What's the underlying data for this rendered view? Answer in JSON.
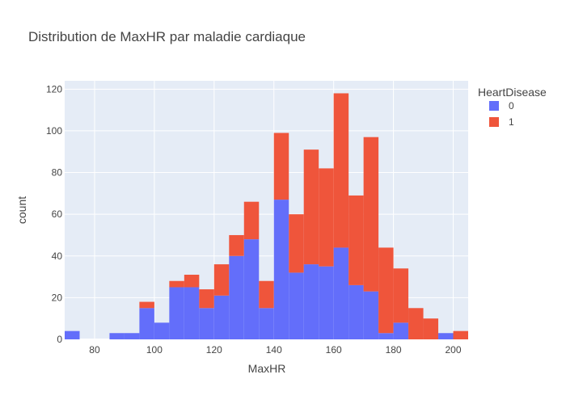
{
  "chart_data": {
    "type": "bar",
    "stacked": true,
    "title": "Distribution de MaxHR par maladie cardiaque",
    "xlabel": "MaxHR",
    "ylabel": "count",
    "xlim": [
      70,
      205
    ],
    "ylim": [
      0,
      124
    ],
    "x_ticks": [
      80,
      100,
      120,
      140,
      160,
      180,
      200
    ],
    "y_ticks": [
      0,
      20,
      40,
      60,
      80,
      100,
      120
    ],
    "bin_width": 5,
    "bin_starts": [
      70,
      75,
      80,
      85,
      90,
      95,
      100,
      105,
      110,
      115,
      120,
      125,
      130,
      135,
      140,
      145,
      150,
      155,
      160,
      165,
      170,
      175,
      180,
      185,
      190,
      195,
      200
    ],
    "legend": {
      "title": "HeartDisease",
      "position": "top-right"
    },
    "grid": true,
    "series": [
      {
        "name": "0",
        "color": "#636efa",
        "values": [
          4,
          0,
          0,
          3,
          3,
          15,
          8,
          25,
          25,
          15,
          21,
          40,
          48,
          15,
          67,
          32,
          36,
          35,
          44,
          26,
          23,
          3,
          8,
          0,
          0,
          3,
          0
        ]
      },
      {
        "name": "1",
        "color": "#ef553b",
        "values": [
          0,
          0,
          0,
          0,
          0,
          3,
          0,
          3,
          6,
          9,
          15,
          10,
          18,
          13,
          32,
          28,
          55,
          47,
          74,
          43,
          74,
          41,
          26,
          15,
          10,
          0,
          4
        ]
      }
    ]
  }
}
